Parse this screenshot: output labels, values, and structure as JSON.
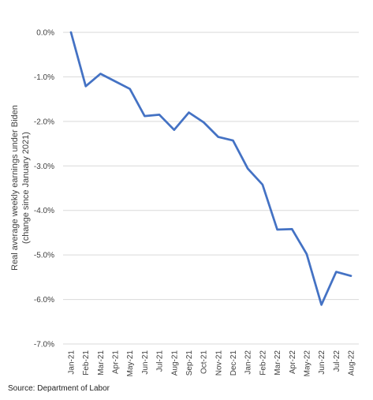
{
  "chart_data": {
    "type": "line",
    "title": "",
    "ylabel_line1": "Real average weekly earnings under Biden",
    "ylabel_line2": "(change since January 2021)",
    "xlabel": "",
    "categories": [
      "Jan-21",
      "Feb-21",
      "Mar-21",
      "Apr-21",
      "May-21",
      "Jun-21",
      "Jul-21",
      "Aug-21",
      "Sep-21",
      "Oct-21",
      "Nov-21",
      "Dec-21",
      "Jan-22",
      "Feb-22",
      "Mar-22",
      "Apr-22",
      "May-22",
      "Jun-22",
      "Jul-22",
      "Aug-22"
    ],
    "series": [
      {
        "values": [
          0.0,
          -1.21,
          -0.93,
          -1.1,
          -1.27,
          -1.88,
          -1.85,
          -2.19,
          -1.8,
          -2.02,
          -2.35,
          -2.43,
          -3.06,
          -3.42,
          -4.43,
          -4.42,
          -4.98,
          -6.12,
          -5.38,
          -5.47
        ],
        "color": "#4472c4"
      }
    ],
    "ylim": [
      -7,
      0
    ],
    "yticks": [
      {
        "value": 0,
        "label": "0.0%"
      },
      {
        "value": -1,
        "label": "-1.0%"
      },
      {
        "value": -2,
        "label": "-2.0%"
      },
      {
        "value": -3,
        "label": "-3.0%"
      },
      {
        "value": -4,
        "label": "-4.0%"
      },
      {
        "value": -5,
        "label": "-5.0%"
      },
      {
        "value": -6,
        "label": "-6.0%"
      },
      {
        "value": -7,
        "label": "-7.0%"
      }
    ],
    "grid": true,
    "legend": "none"
  },
  "source": "Source: Department of Labor"
}
